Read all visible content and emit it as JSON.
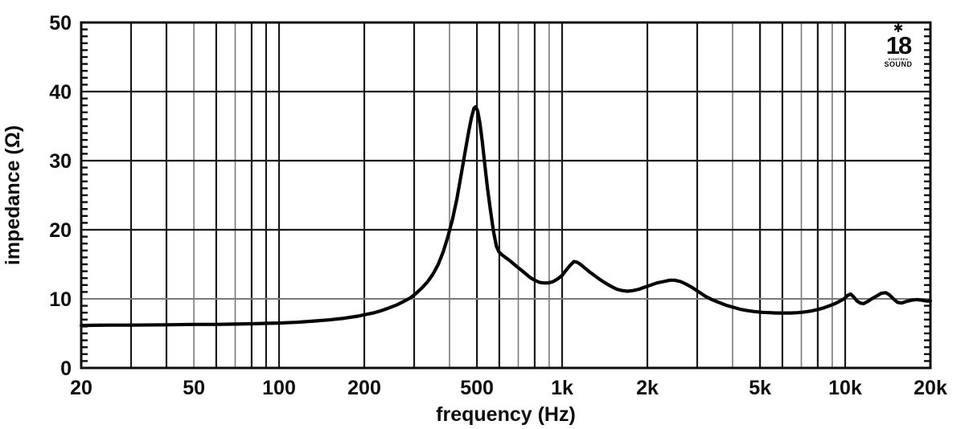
{
  "page": {
    "background": "#ffffff"
  },
  "logo": {
    "star": "✱",
    "number": "18",
    "brand_top": "EIGHTEEN",
    "brand_bottom": "SOUND"
  },
  "chart_data": {
    "type": "line",
    "title": "",
    "xlabel": "frequency (Hz)",
    "ylabel": "impedance (Ω)",
    "x_scale": "log",
    "xlim": [
      20,
      20000
    ],
    "ylim": [
      0,
      50
    ],
    "grid": "on",
    "legend": "none",
    "colors": {
      "curve": "#050505",
      "frame": "#0d0d0d",
      "grid_dark": "#1a1a1a",
      "grid_gray": "#7a7a7a",
      "background": "#ffffff"
    },
    "x_ticks": [
      {
        "f": 20,
        "label": "20"
      },
      {
        "f": 50,
        "label": "50"
      },
      {
        "f": 100,
        "label": "100"
      },
      {
        "f": 200,
        "label": "200"
      },
      {
        "f": 500,
        "label": "500"
      },
      {
        "f": 1000,
        "label": "1k"
      },
      {
        "f": 2000,
        "label": "2k"
      },
      {
        "f": 5000,
        "label": "5k"
      },
      {
        "f": 10000,
        "label": "10k"
      },
      {
        "f": 20000,
        "label": "20k"
      }
    ],
    "y_ticks": [
      {
        "v": 0,
        "label": "0"
      },
      {
        "v": 10,
        "label": "10"
      },
      {
        "v": 20,
        "label": "20"
      },
      {
        "v": 30,
        "label": "30"
      },
      {
        "v": 40,
        "label": "40"
      },
      {
        "v": 50,
        "label": "50"
      }
    ],
    "v_gridlines": [
      30,
      40,
      50,
      60,
      70,
      80,
      90,
      100,
      200,
      300,
      400,
      500,
      600,
      700,
      800,
      900,
      1000,
      2000,
      3000,
      4000,
      5000,
      6000,
      7000,
      8000,
      9000,
      10000
    ],
    "v_gridlines_gray": [
      50,
      70,
      400,
      700,
      900,
      4000,
      7000,
      9000
    ],
    "h_gridlines_dark": [
      20,
      30,
      40
    ],
    "h_gridlines_gray": [
      10
    ],
    "minor_tick_step_ohm": 1,
    "series": [
      {
        "name": "impedance",
        "color": "#050505",
        "points": [
          [
            20,
            6.15
          ],
          [
            25,
            6.2
          ],
          [
            30,
            6.2
          ],
          [
            40,
            6.25
          ],
          [
            50,
            6.3
          ],
          [
            60,
            6.3
          ],
          [
            70,
            6.35
          ],
          [
            80,
            6.4
          ],
          [
            90,
            6.45
          ],
          [
            100,
            6.5
          ],
          [
            115,
            6.6
          ],
          [
            130,
            6.75
          ],
          [
            150,
            6.95
          ],
          [
            170,
            7.2
          ],
          [
            190,
            7.5
          ],
          [
            200,
            7.7
          ],
          [
            215,
            7.95
          ],
          [
            230,
            8.3
          ],
          [
            245,
            8.7
          ],
          [
            260,
            9.1
          ],
          [
            275,
            9.6
          ],
          [
            290,
            10.1
          ],
          [
            305,
            10.8
          ],
          [
            320,
            11.6
          ],
          [
            335,
            12.5
          ],
          [
            350,
            13.6
          ],
          [
            365,
            15.0
          ],
          [
            380,
            16.8
          ],
          [
            395,
            19.0
          ],
          [
            410,
            21.5
          ],
          [
            425,
            24.5
          ],
          [
            440,
            28.0
          ],
          [
            455,
            31.5
          ],
          [
            468,
            34.3
          ],
          [
            478,
            36.2
          ],
          [
            488,
            37.6
          ],
          [
            495,
            37.8
          ],
          [
            503,
            37.2
          ],
          [
            512,
            35.5
          ],
          [
            522,
            32.8
          ],
          [
            533,
            29.5
          ],
          [
            545,
            26.0
          ],
          [
            558,
            22.8
          ],
          [
            572,
            19.8
          ],
          [
            586,
            17.6
          ],
          [
            598,
            16.8
          ],
          [
            612,
            16.4
          ],
          [
            630,
            16.0
          ],
          [
            650,
            15.6
          ],
          [
            672,
            15.1
          ],
          [
            695,
            14.6
          ],
          [
            720,
            14.1
          ],
          [
            745,
            13.6
          ],
          [
            770,
            13.1
          ],
          [
            800,
            12.7
          ],
          [
            830,
            12.4
          ],
          [
            860,
            12.3
          ],
          [
            895,
            12.3
          ],
          [
            930,
            12.5
          ],
          [
            965,
            12.9
          ],
          [
            1000,
            13.4
          ],
          [
            1035,
            14.2
          ],
          [
            1070,
            14.9
          ],
          [
            1100,
            15.4
          ],
          [
            1130,
            15.3
          ],
          [
            1160,
            15.0
          ],
          [
            1200,
            14.5
          ],
          [
            1250,
            13.9
          ],
          [
            1300,
            13.4
          ],
          [
            1360,
            12.8
          ],
          [
            1420,
            12.3
          ],
          [
            1490,
            11.8
          ],
          [
            1560,
            11.4
          ],
          [
            1630,
            11.2
          ],
          [
            1700,
            11.1
          ],
          [
            1780,
            11.2
          ],
          [
            1870,
            11.4
          ],
          [
            1960,
            11.7
          ],
          [
            2060,
            12.0
          ],
          [
            2160,
            12.3
          ],
          [
            2280,
            12.5
          ],
          [
            2400,
            12.7
          ],
          [
            2500,
            12.7
          ],
          [
            2620,
            12.5
          ],
          [
            2750,
            12.1
          ],
          [
            2890,
            11.6
          ],
          [
            3040,
            11.0
          ],
          [
            3200,
            10.4
          ],
          [
            3380,
            9.9
          ],
          [
            3570,
            9.5
          ],
          [
            3780,
            9.1
          ],
          [
            4000,
            8.8
          ],
          [
            4250,
            8.5
          ],
          [
            4500,
            8.3
          ],
          [
            4800,
            8.15
          ],
          [
            5100,
            8.05
          ],
          [
            5400,
            8.0
          ],
          [
            5700,
            7.95
          ],
          [
            6000,
            7.95
          ],
          [
            6400,
            7.95
          ],
          [
            6800,
            8.0
          ],
          [
            7200,
            8.1
          ],
          [
            7600,
            8.25
          ],
          [
            8000,
            8.45
          ],
          [
            8400,
            8.7
          ],
          [
            8800,
            9.0
          ],
          [
            9200,
            9.3
          ],
          [
            9600,
            9.7
          ],
          [
            9900,
            10.0
          ],
          [
            10200,
            10.5
          ],
          [
            10450,
            10.7
          ],
          [
            10700,
            10.3
          ],
          [
            11000,
            9.7
          ],
          [
            11300,
            9.4
          ],
          [
            11600,
            9.3
          ],
          [
            12000,
            9.6
          ],
          [
            12400,
            10.0
          ],
          [
            12900,
            10.4
          ],
          [
            13400,
            10.8
          ],
          [
            13900,
            10.9
          ],
          [
            14300,
            10.6
          ],
          [
            14800,
            10.0
          ],
          [
            15300,
            9.5
          ],
          [
            15800,
            9.4
          ],
          [
            16400,
            9.6
          ],
          [
            17100,
            9.8
          ],
          [
            17900,
            9.9
          ],
          [
            18700,
            9.8
          ],
          [
            19300,
            9.7
          ],
          [
            20000,
            9.7
          ]
        ]
      }
    ]
  }
}
